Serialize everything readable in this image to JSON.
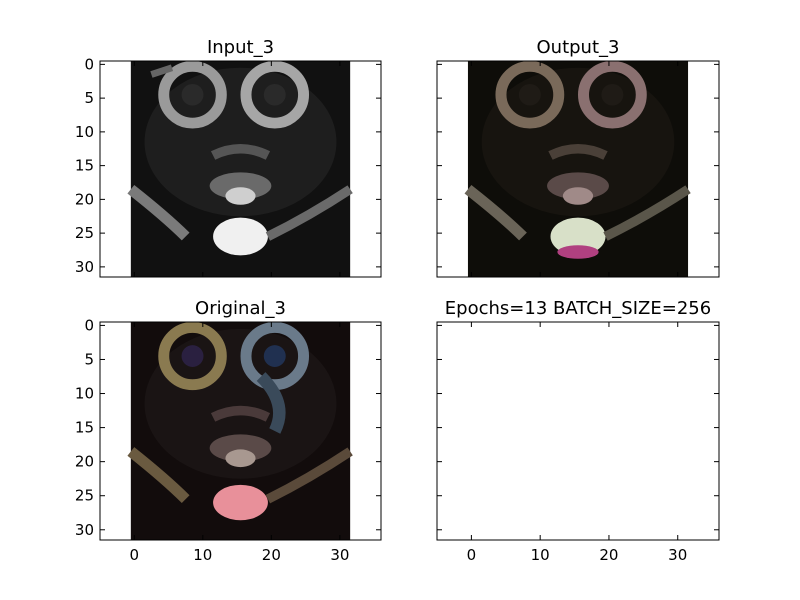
{
  "chart_data": [
    {
      "type": "image",
      "title": "Input_3",
      "xlim": [
        -5,
        36
      ],
      "ylim": [
        31.5,
        -0.5
      ],
      "x_ticks": [],
      "y_ticks": [
        "0",
        "5",
        "10",
        "15",
        "20",
        "25",
        "30"
      ],
      "image_extent": [
        -0.5,
        31.5
      ],
      "colormap": "gray"
    },
    {
      "type": "image",
      "title": "Output_3",
      "xlim": [
        -5,
        36
      ],
      "ylim": [
        31.5,
        -0.5
      ],
      "x_ticks": [],
      "y_ticks": [],
      "image_extent": [
        -0.5,
        31.5
      ],
      "colormap": "rgb"
    },
    {
      "type": "image",
      "title": "Original_3",
      "xlim": [
        -5,
        36
      ],
      "ylim": [
        31.5,
        -0.5
      ],
      "x_ticks": [
        "0",
        "10",
        "20",
        "30"
      ],
      "y_ticks": [
        "0",
        "5",
        "10",
        "15",
        "20",
        "25",
        "30"
      ],
      "image_extent": [
        -0.5,
        31.5
      ],
      "colormap": "rgb"
    },
    {
      "type": "empty",
      "title": "Epochs=13 BATCH_SIZE=256",
      "xlim": [
        -5,
        36
      ],
      "ylim": [
        31.5,
        -0.5
      ],
      "x_ticks": [
        "0",
        "10",
        "20",
        "30"
      ],
      "y_ticks": []
    }
  ]
}
